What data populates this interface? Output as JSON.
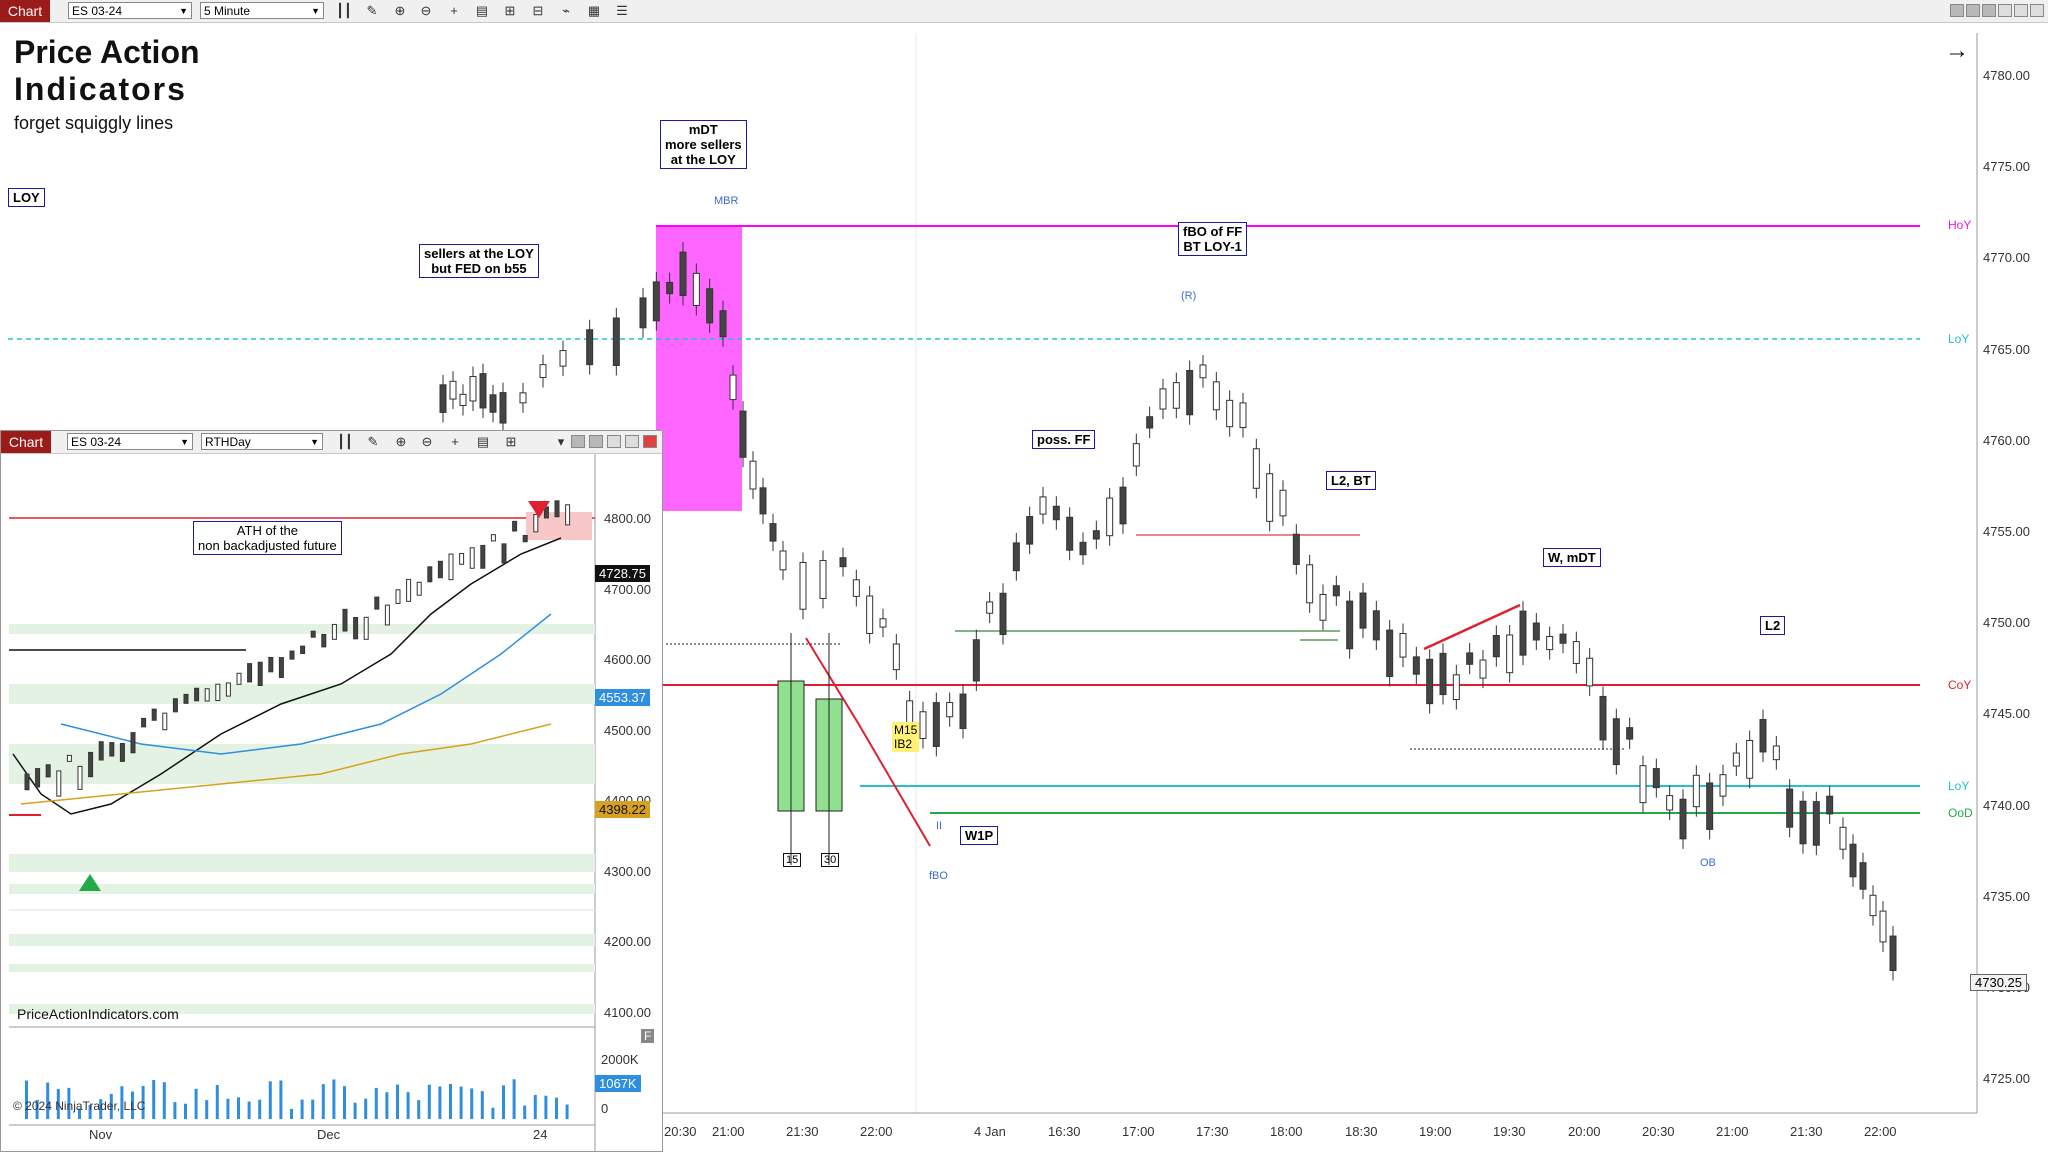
{
  "main_window": {
    "tab_label": "Chart",
    "instrument": "ES 03-24",
    "interval": "5 Minute",
    "title_line1": "Price Action",
    "title_line2": "Indicators",
    "title_line3": "forget squiggly lines",
    "price_axis": [
      "4780.00",
      "4775.00",
      "4770.00",
      "4765.00",
      "4760.00",
      "4755.00",
      "4750.00",
      "4745.00",
      "4740.00",
      "4735.00",
      "4730.00",
      "4725.00"
    ],
    "current_price": "4730.25",
    "time_axis": [
      "20:30",
      "21:00",
      "21:30",
      "22:00",
      "4 Jan",
      "16:30",
      "17:00",
      "17:30",
      "18:00",
      "18:30",
      "19:00",
      "19:30",
      "20:00",
      "20:30",
      "21:00",
      "21:30",
      "22:00"
    ],
    "level_labels": {
      "hoy": "HoY",
      "loy_dash": "LoY",
      "coy": "CoY",
      "loy": "LoY",
      "ood": "OoD"
    },
    "annotations": {
      "loy": "LOY",
      "sellers_line1": "sellers at the LOY",
      "sellers_line2": "but FED on b55",
      "mdt_line1": "mDT",
      "mdt_line2": "more sellers",
      "mdt_line3": "at the LOY",
      "mbr": "MBR",
      "poss_ff": "poss. FF",
      "fbo_line1": "fBO of FF",
      "fbo_line2": "BT LOY-1",
      "r_label": "(R)",
      "l2bt": "L2, BT",
      "wmdt": "W, mDT",
      "l2": "L2",
      "w1p": "W1P",
      "m15": "M15",
      "ib2": "IB2",
      "box15": "15",
      "box30": "30",
      "fbo_small": "fBO",
      "ii": "II",
      "ob": "OB"
    }
  },
  "inset_window": {
    "tab_label": "Chart",
    "instrument": "ES 03-24",
    "session": "RTHDay",
    "price_axis": [
      "4800.00",
      "4700.00",
      "4600.00",
      "4500.00",
      "4400.00",
      "4300.00",
      "4200.00",
      "4100.00"
    ],
    "badges": {
      "last": "4728.75",
      "blue": "4553.37",
      "gold": "4398.22",
      "vol_blue": "1067K"
    },
    "volume_axis": [
      "2000K",
      "0"
    ],
    "time_axis": [
      "Nov",
      "Dec",
      "24"
    ],
    "ath_line1": "ATH of the",
    "ath_line2": "non backadjusted future",
    "watermark": "PriceActionIndicators.com",
    "copyright": "© 2024 NinjaTrader, LLC",
    "f_button": "F"
  },
  "colors": {
    "magenta": "#ff00ff",
    "red": "#e0202e",
    "cyan": "#22c0d0",
    "green": "#22aa44",
    "tab": "#9b1b1b",
    "green_candle": "#90e090",
    "annotation_border": "#1a1aa0"
  }
}
